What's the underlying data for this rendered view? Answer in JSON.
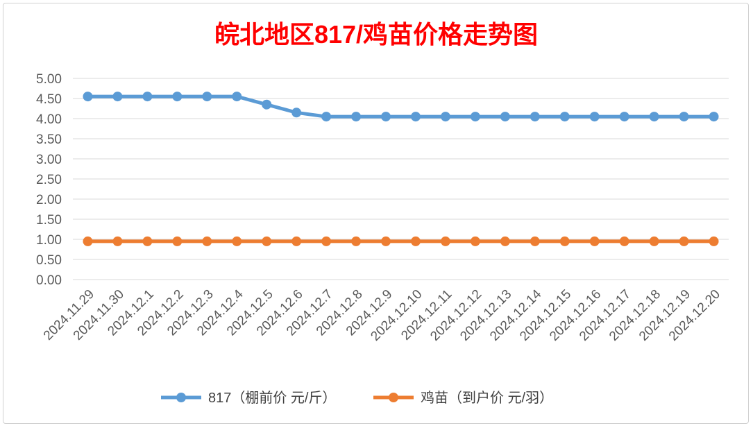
{
  "chart_data": {
    "type": "line",
    "title": "皖北地区817/鸡苗价格走势图",
    "xlabel": "",
    "ylabel": "",
    "ylim": [
      0,
      5
    ],
    "y_ticks": [
      "0.00",
      "0.50",
      "1.00",
      "1.50",
      "2.00",
      "2.50",
      "3.00",
      "3.50",
      "4.00",
      "4.50",
      "5.00"
    ],
    "grid": true,
    "legend_position": "bottom",
    "categories": [
      "2024.11.29",
      "2024.11.30",
      "2024.12.1",
      "2024.12.2",
      "2024.12.3",
      "2024.12.4",
      "2024.12.5",
      "2024.12.6",
      "2024.12.7",
      "2024.12.8",
      "2024.12.9",
      "2024.12.10",
      "2024.12.11",
      "2024.12.12",
      "2024.12.13",
      "2024.12.14",
      "2024.12.15",
      "2024.12.16",
      "2024.12.17",
      "2024.12.18",
      "2024.12.19",
      "2024.12.20"
    ],
    "series": [
      {
        "name": "817（棚前价 元/斤）",
        "color": "#5b9bd5",
        "values": [
          4.55,
          4.55,
          4.55,
          4.55,
          4.55,
          4.55,
          4.35,
          4.15,
          4.05,
          4.05,
          4.05,
          4.05,
          4.05,
          4.05,
          4.05,
          4.05,
          4.05,
          4.05,
          4.05,
          4.05,
          4.05,
          4.05
        ]
      },
      {
        "name": "鸡苗（到户价 元/羽）",
        "color": "#ed7d31",
        "values": [
          0.95,
          0.95,
          0.95,
          0.95,
          0.95,
          0.95,
          0.95,
          0.95,
          0.95,
          0.95,
          0.95,
          0.95,
          0.95,
          0.95,
          0.95,
          0.95,
          0.95,
          0.95,
          0.95,
          0.95,
          0.95,
          0.95
        ]
      }
    ]
  }
}
